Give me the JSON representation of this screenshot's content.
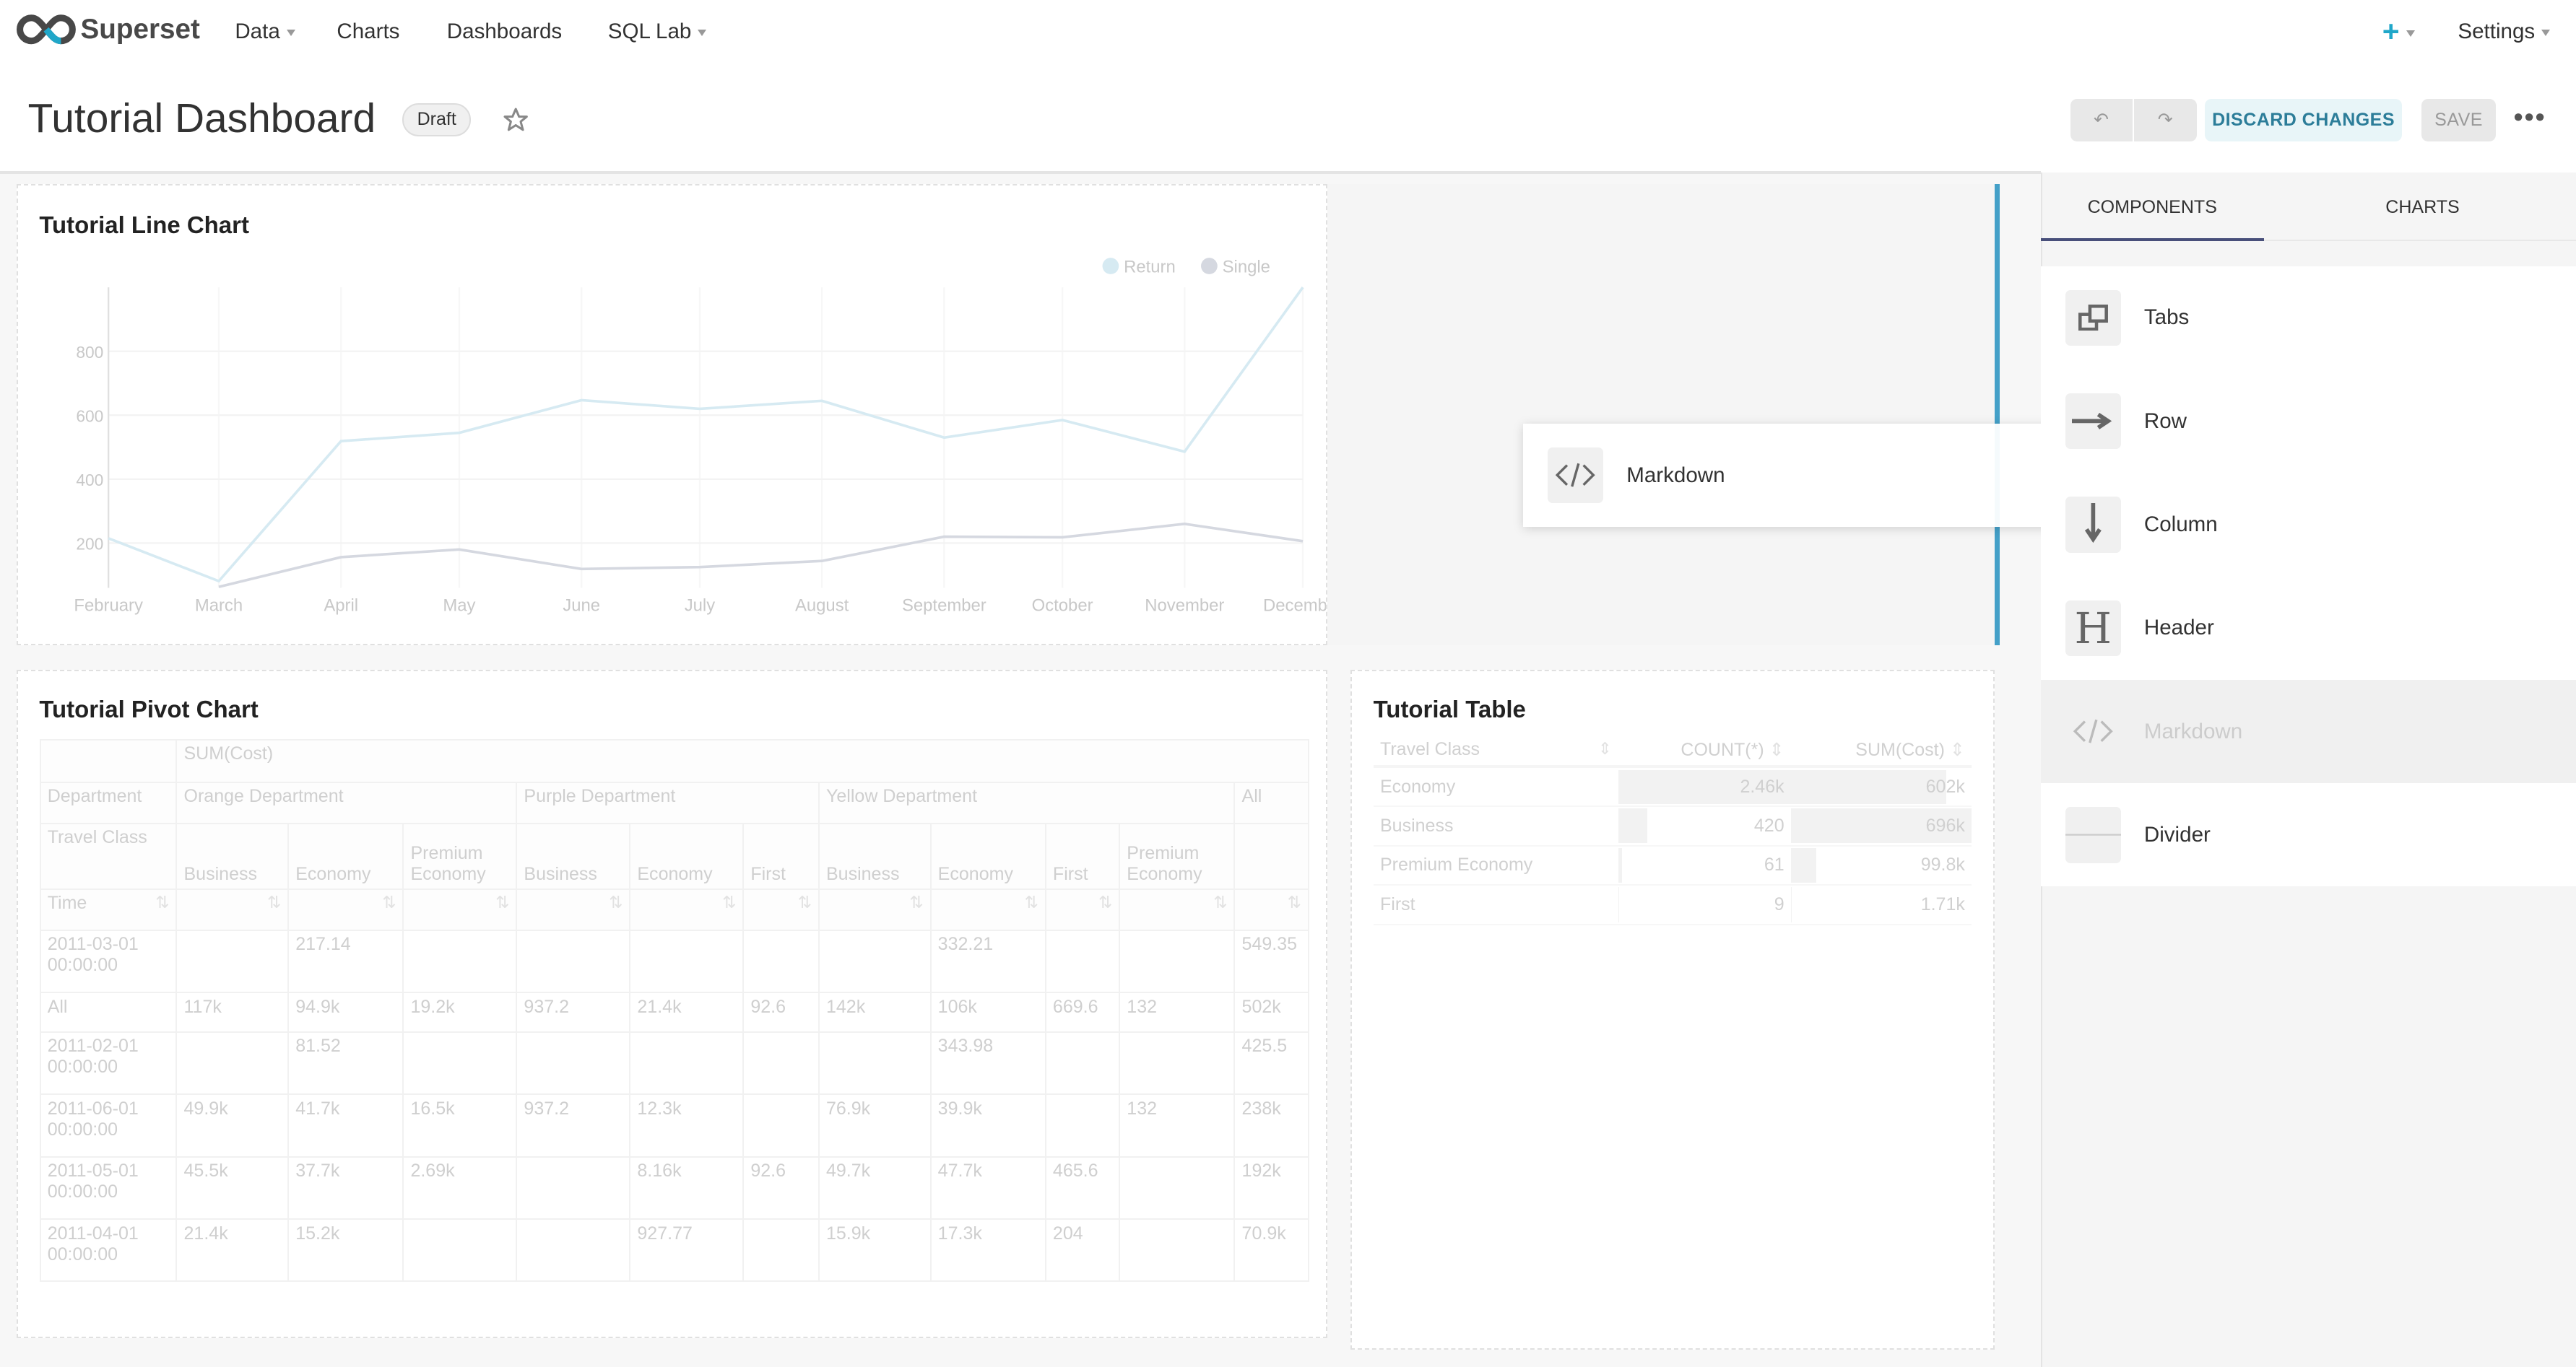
{
  "navbar": {
    "brand": "Superset",
    "menu": [
      {
        "label": "Data",
        "dropdown": true
      },
      {
        "label": "Charts",
        "dropdown": false
      },
      {
        "label": "Dashboards",
        "dropdown": false
      },
      {
        "label": "SQL Lab",
        "dropdown": true
      }
    ],
    "new_icon": "plus-icon",
    "settings_label": "Settings",
    "accent": "#20a7c9"
  },
  "header": {
    "title": "Tutorial Dashboard",
    "badge": "Draft",
    "discard_label": "DISCARD CHANGES",
    "save_label": "SAVE"
  },
  "line_chart": {
    "title": "Tutorial Line Chart",
    "chart_data": {
      "type": "line",
      "x": [
        "2011-02-01",
        "2011-03-01",
        "2011-04-01",
        "2011-05-01",
        "2011-06-01",
        "2011-07-01",
        "2011-08-01",
        "2011-09-01",
        "2011-10-01",
        "2011-11-01",
        "2011-12-01"
      ],
      "x_tick_labels": [
        "February",
        "March",
        "April",
        "May",
        "June",
        "July",
        "August",
        "September",
        "October",
        "November",
        "December"
      ],
      "y_ticks": [
        200,
        400,
        600,
        800
      ],
      "ylim": [
        60,
        1000
      ],
      "legend": "top-right",
      "grid": true,
      "series": [
        {
          "name": "Return",
          "color": "#d6eaf2",
          "values": [
            215,
            81,
            519,
            545,
            647,
            620,
            645,
            530,
            585,
            486,
            1000
          ]
        },
        {
          "name": "Single",
          "color": "#d5d8e0",
          "values": [
            null,
            63,
            156,
            180,
            119,
            125,
            144,
            220,
            218,
            260,
            206
          ]
        }
      ]
    }
  },
  "drag_ghost": {
    "label": "Markdown",
    "icon": "code-icon"
  },
  "pivot": {
    "title": "Tutorial Pivot Chart",
    "metric": "SUM(Cost)",
    "dept_label": "Department",
    "departments": [
      {
        "name": "Orange Department",
        "span": 3
      },
      {
        "name": "Purple Department",
        "span": 3
      },
      {
        "name": "Yellow Department",
        "span": 4
      },
      {
        "name": "All",
        "span": 1
      }
    ],
    "class_label": "Travel Class",
    "classes": [
      "Business",
      "Economy",
      "Premium Economy",
      "Business",
      "Economy",
      "First",
      "Business",
      "Economy",
      "First",
      "Premium Economy",
      ""
    ],
    "time_label": "Time",
    "rows": [
      {
        "label": "2011-03-01 00:00:00",
        "cells": [
          "",
          "217.14",
          "",
          "",
          "",
          "",
          "",
          "332.21",
          "",
          "",
          "549.35"
        ]
      },
      {
        "label": "All",
        "cells": [
          "117k",
          "94.9k",
          "19.2k",
          "937.2",
          "21.4k",
          "92.6",
          "142k",
          "106k",
          "669.6",
          "132",
          "502k"
        ]
      },
      {
        "label": "2011-02-01 00:00:00",
        "cells": [
          "",
          "81.52",
          "",
          "",
          "",
          "",
          "",
          "343.98",
          "",
          "",
          "425.5"
        ]
      },
      {
        "label": "2011-06-01 00:00:00",
        "cells": [
          "49.9k",
          "41.7k",
          "16.5k",
          "937.2",
          "12.3k",
          "",
          "76.9k",
          "39.9k",
          "",
          "132",
          "238k"
        ]
      },
      {
        "label": "2011-05-01 00:00:00",
        "cells": [
          "45.5k",
          "37.7k",
          "2.69k",
          "",
          "8.16k",
          "92.6",
          "49.7k",
          "47.7k",
          "465.6",
          "",
          "192k"
        ]
      },
      {
        "label": "2011-04-01 00:00:00",
        "cells": [
          "21.4k",
          "15.2k",
          "",
          "",
          "927.77",
          "",
          "15.9k",
          "17.3k",
          "204",
          "",
          "70.9k"
        ]
      }
    ]
  },
  "table": {
    "title": "Tutorial Table",
    "columns": [
      "Travel Class",
      "COUNT(*)",
      "SUM(Cost)"
    ],
    "rows": [
      {
        "cls": "Economy",
        "count": "2.46k",
        "sum": "602k",
        "count_frac": 1.0,
        "sum_frac": 0.86
      },
      {
        "cls": "Business",
        "count": "420",
        "sum": "696k",
        "count_frac": 0.17,
        "sum_frac": 1.0
      },
      {
        "cls": "Premium Economy",
        "count": "61",
        "sum": "99.8k",
        "count_frac": 0.02,
        "sum_frac": 0.14
      },
      {
        "cls": "First",
        "count": "9",
        "sum": "1.71k",
        "count_frac": 0.004,
        "sum_frac": 0.002
      }
    ]
  },
  "panel": {
    "tabs": [
      {
        "label": "COMPONENTS",
        "active": true
      },
      {
        "label": "CHARTS",
        "active": false
      }
    ],
    "items": [
      {
        "label": "Tabs",
        "icon": "tabs-icon"
      },
      {
        "label": "Row",
        "icon": "arrow-right-icon"
      },
      {
        "label": "Column",
        "icon": "arrow-down-icon"
      },
      {
        "label": "Header",
        "icon": "header-icon"
      },
      {
        "label": "Markdown",
        "icon": "code-icon",
        "dragging": true
      },
      {
        "label": "Divider",
        "icon": "divider-icon"
      }
    ]
  }
}
